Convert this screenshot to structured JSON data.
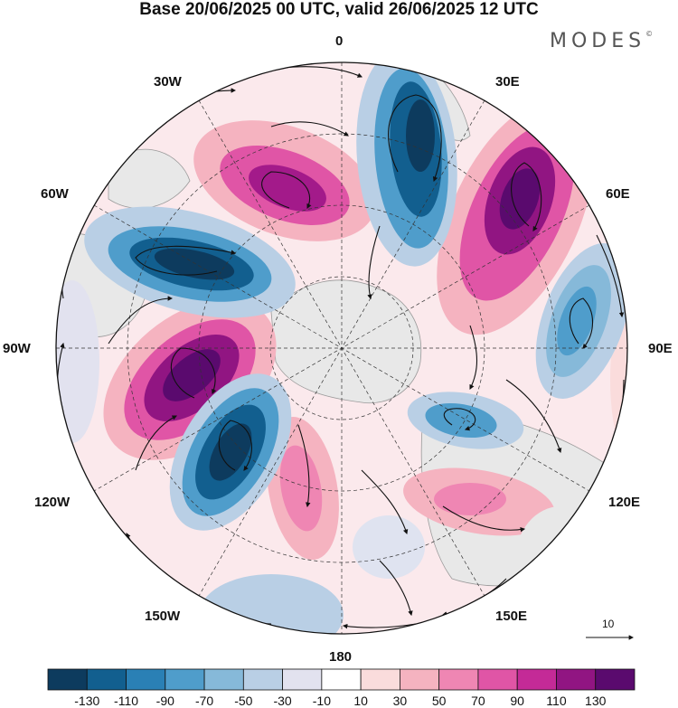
{
  "title": "Base 20/06/2025 00 UTC, valid 26/06/2025 12 UTC",
  "logo": "MODES",
  "logo_mark": "©",
  "longitude_labels": {
    "top": "0",
    "top_right": "30E",
    "right_upper": "60E",
    "right": "90E",
    "right_lower": "120E",
    "bottom_right": "150E",
    "bottom": "180",
    "bottom_left": "150W",
    "left_lower": "120W",
    "left": "90W",
    "left_upper": "60W",
    "top_left": "30W"
  },
  "vector_reference": {
    "label": "10"
  },
  "colorbar": {
    "tick_labels": [
      "-130",
      "-110",
      "-90",
      "-70",
      "-50",
      "-30",
      "-10",
      "10",
      "30",
      "50",
      "70",
      "90",
      "110",
      "130"
    ],
    "colors": [
      "#0d3b5e",
      "#125f8f",
      "#2a80b5",
      "#4f9dcb",
      "#86b9d9",
      "#b9cfe5",
      "#e2e2ef",
      "#ffffff",
      "#fadcdc",
      "#f5b3c0",
      "#ef86b3",
      "#e055a6",
      "#c42a97",
      "#911582",
      "#5a0a6e"
    ]
  },
  "anomaly_centers": [
    {
      "kind": "negative",
      "color": "#0d3b5e"
    },
    {
      "kind": "positive",
      "color": "#7a1380"
    }
  ],
  "land_color": "#e6e6e6"
}
